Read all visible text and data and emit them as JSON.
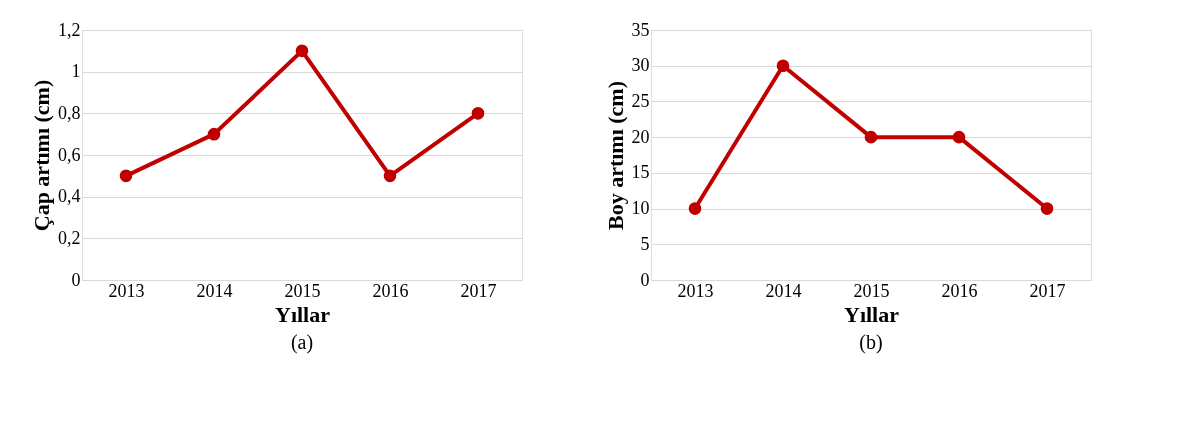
{
  "chart_data": [
    {
      "type": "line",
      "categories": [
        "2013",
        "2014",
        "2015",
        "2016",
        "2017"
      ],
      "xlabel": "Yıllar",
      "ylabel": "Çap artımı (cm)",
      "series": [
        {
          "color": "#c00000",
          "values": [
            0.5,
            0.7,
            1.1,
            0.5,
            0.8
          ]
        }
      ],
      "ylim": [
        0,
        1.2
      ],
      "yticks": [
        0,
        {
          "value": 0.2,
          "label": "0,2"
        },
        {
          "value": 0.4,
          "label": "0,4"
        },
        {
          "value": 0.6,
          "label": "0,6"
        },
        {
          "value": 0.8,
          "label": "0,8"
        },
        1,
        {
          "value": 1.2,
          "label": "1,2"
        }
      ],
      "grid": "y",
      "marker": "circle",
      "line_style": "solid",
      "annotations": [
        "(a)"
      ]
    },
    {
      "type": "line",
      "categories": [
        "2013",
        "2014",
        "2015",
        "2016",
        "2017"
      ],
      "xlabel": "Yıllar",
      "ylabel": "Boy artımı (cm)",
      "series": [
        {
          "color": "#c00000",
          "values": [
            10,
            30,
            20,
            20,
            10
          ]
        }
      ],
      "ylim": [
        0,
        35
      ],
      "yticks": [
        0,
        5,
        10,
        15,
        20,
        25,
        30,
        35
      ],
      "grid": "y",
      "marker": "circle",
      "line_style": "solid",
      "annotations": [
        "(b)"
      ]
    }
  ]
}
